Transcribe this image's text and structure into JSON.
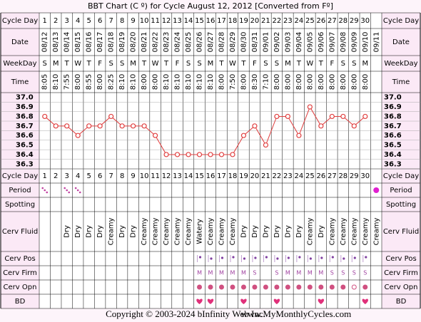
{
  "title": "BBT Chart (C º) for Cycle August 12, 2012  [Converted from Fº]",
  "row_labels": {
    "cycle_day": "Cycle Day",
    "date": "Date",
    "weekday": "WeekDay",
    "time": "Time",
    "period": "Period",
    "spotting": "Spotting",
    "cerv_fluid": "Cerv Fluid",
    "cerv_pos": "Cerv Pos",
    "cerv_firm": "Cerv Firm",
    "cerv_opn": "Cerv Opn",
    "bd": "BD"
  },
  "columns": {
    "cycle_day": [
      1,
      2,
      3,
      4,
      5,
      6,
      7,
      8,
      9,
      10,
      11,
      12,
      13,
      14,
      15,
      16,
      17,
      18,
      19,
      20,
      21,
      22,
      23,
      24,
      25,
      26,
      27,
      28,
      29,
      30,
      null
    ],
    "date": [
      "08/12",
      "08/13",
      "08/14",
      "08/15",
      "08/16",
      "08/17",
      "08/18",
      "08/19",
      "08/20",
      "08/21",
      "08/22",
      "08/23",
      "08/24",
      "08/25",
      "08/26",
      "08/27",
      "08/28",
      "08/29",
      "08/30",
      "08/31",
      "09/01",
      "09/02",
      "09/03",
      "09/04",
      "09/05",
      "09/06",
      "09/07",
      "09/08",
      "09/09",
      "09/10",
      "09/11"
    ],
    "weekday": [
      "S",
      "M",
      "T",
      "W",
      "T",
      "F",
      "S",
      "S",
      "M",
      "T",
      "W",
      "T",
      "F",
      "S",
      "S",
      "M",
      "T",
      "W",
      "T",
      "F",
      "S",
      "S",
      "M",
      "T",
      "W",
      "T",
      "F",
      "S",
      "S",
      "M",
      null
    ],
    "time": [
      "8:05",
      "8:10",
      "7:55",
      "8:00",
      "8:55",
      "8:00",
      "8:25",
      "8:10",
      "8:10",
      "8:00",
      "8:00",
      "8:10",
      "8:10",
      "8:10",
      "8:10",
      "8:10",
      "8:00",
      "7:50",
      "8:00",
      "8:30",
      "7:10",
      "8:00",
      "8:00",
      "8:00",
      "8:00",
      "8:00",
      "8:00",
      "8:00",
      "8:00",
      "8:00",
      null
    ],
    "cerv_fluid": [
      null,
      null,
      "Dry",
      "Dry",
      "Dry",
      "Dry",
      "Creamy",
      "Dry",
      "Dry",
      "Creamy",
      "Creamy",
      "Creamy",
      "Creamy",
      "Creamy",
      "Watery",
      "Creamy",
      "Creamy",
      "Creamy",
      "Dry",
      "Dry",
      "Dry",
      "Dry",
      "Dry",
      "Dry",
      "Creamy",
      "Dry",
      "Creamy",
      "Creamy",
      "Creamy",
      "Creamy",
      "Creamy"
    ],
    "cerv_firm": [
      null,
      null,
      null,
      null,
      null,
      null,
      null,
      null,
      null,
      null,
      null,
      null,
      null,
      null,
      "M",
      "M",
      "M",
      "M",
      "M",
      "S",
      null,
      "S",
      "M",
      "M",
      "M",
      "M",
      "S",
      "S",
      "S",
      "S",
      null
    ]
  },
  "temperature": {
    "type": "line",
    "color": "#e04040",
    "values": [
      36.8,
      36.7,
      36.7,
      36.6,
      36.7,
      36.7,
      36.8,
      36.7,
      36.7,
      36.7,
      36.6,
      36.4,
      36.4,
      36.4,
      36.4,
      36.4,
      36.4,
      36.4,
      36.6,
      36.7,
      36.5,
      36.8,
      36.8,
      36.6,
      36.9,
      36.7,
      36.8,
      36.8,
      36.7,
      36.8,
      null
    ],
    "ylim": [
      36.25,
      37.05
    ],
    "yticks": [
      {
        "value": 37,
        "label": "37.0"
      },
      36.9,
      36.8,
      36.7,
      36.6,
      36.5,
      36.4,
      36.3
    ]
  },
  "footer": {
    "copyright": "Copyright © 2003-2024 bInfinity Web Inc.",
    "site": "www.MyMonthlyCycles.com"
  }
}
